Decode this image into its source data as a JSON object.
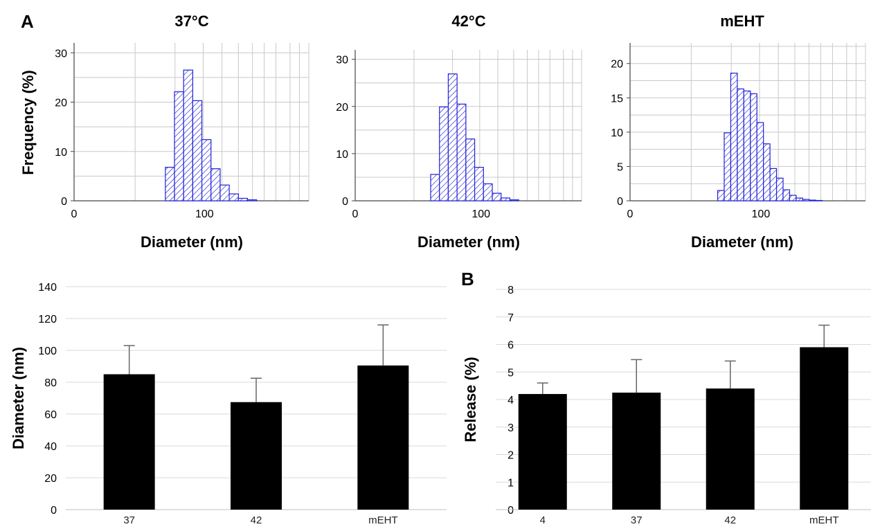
{
  "panels": {
    "a": "A",
    "b": "B"
  },
  "chart_data": [
    {
      "type": "bar",
      "subtype": "histogram",
      "title": "37°C",
      "xlabel": "Diameter (nm)",
      "ylabel": "Frequency (%)",
      "x_ticks": [
        "0",
        "100"
      ],
      "y_ticks": [
        "0",
        "10",
        "20",
        "30"
      ],
      "xlim": [
        0,
        180
      ],
      "ylim": [
        0,
        32
      ],
      "bin_width": 7,
      "bin_starts": [
        70,
        77,
        84,
        91,
        98,
        105,
        112,
        119,
        126,
        133
      ],
      "values": [
        6.8,
        22.1,
        26.5,
        20.3,
        12.4,
        6.5,
        3.2,
        1.4,
        0.5,
        0.2
      ],
      "grid": true,
      "colors": {
        "bar_stroke": "#2020d8",
        "grid": "#c8c8c8"
      }
    },
    {
      "type": "bar",
      "subtype": "histogram",
      "title": "42°C",
      "xlabel": "Diameter (nm)",
      "ylabel": "",
      "x_ticks": [
        "0",
        "100"
      ],
      "y_ticks": [
        "0",
        "10",
        "20",
        "30"
      ],
      "xlim": [
        0,
        180
      ],
      "ylim": [
        0,
        32
      ],
      "bin_width": 7,
      "bin_starts": [
        60,
        67,
        74,
        81,
        88,
        95,
        102,
        109,
        116,
        123
      ],
      "values": [
        5.6,
        19.9,
        26.9,
        20.5,
        13.1,
        7.1,
        3.6,
        1.6,
        0.6,
        0.2
      ],
      "grid": true,
      "colors": {
        "bar_stroke": "#2020d8",
        "grid": "#c8c8c8"
      }
    },
    {
      "type": "bar",
      "subtype": "histogram",
      "title": "mEHT",
      "xlabel": "Diameter (nm)",
      "ylabel": "",
      "x_ticks": [
        "0",
        "100"
      ],
      "y_ticks": [
        "0",
        "5",
        "10",
        "15",
        "20"
      ],
      "xlim": [
        0,
        180
      ],
      "ylim": [
        0,
        23
      ],
      "bin_width": 5,
      "bin_starts": [
        67,
        72,
        77,
        82,
        87,
        92,
        97,
        102,
        107,
        112,
        117,
        122,
        127,
        132,
        137,
        142
      ],
      "values": [
        1.5,
        9.9,
        18.6,
        16.3,
        16.0,
        15.6,
        11.4,
        8.3,
        4.7,
        3.3,
        1.6,
        0.8,
        0.4,
        0.2,
        0.1,
        0.05
      ],
      "grid": true,
      "colors": {
        "bar_stroke": "#2020d8",
        "grid": "#c8c8c8"
      }
    },
    {
      "type": "bar",
      "title": "",
      "xlabel": "",
      "ylabel": "Diameter (nm)",
      "categories": [
        "37",
        "42",
        "mEHT"
      ],
      "values": [
        85,
        67.5,
        90.5
      ],
      "errors": [
        18,
        15,
        25.5
      ],
      "y_ticks": [
        "0",
        "20",
        "40",
        "60",
        "80",
        "100",
        "120",
        "140"
      ],
      "ylim": [
        0,
        140
      ],
      "grid": true,
      "colors": {
        "bar": "#000000",
        "error": "#666666",
        "grid": "#d9d9d9"
      }
    },
    {
      "type": "bar",
      "title": "",
      "xlabel": "",
      "ylabel": "Release (%)",
      "categories": [
        "4",
        "37",
        "42",
        "mEHT"
      ],
      "values": [
        4.2,
        4.25,
        4.4,
        5.9
      ],
      "errors": [
        0.4,
        1.2,
        1.0,
        0.8
      ],
      "y_ticks": [
        "0",
        "1",
        "2",
        "3",
        "4",
        "5",
        "6",
        "7",
        "8"
      ],
      "ylim": [
        0,
        8
      ],
      "grid": true,
      "colors": {
        "bar": "#000000",
        "error": "#666666",
        "grid": "#d9d9d9"
      }
    }
  ]
}
